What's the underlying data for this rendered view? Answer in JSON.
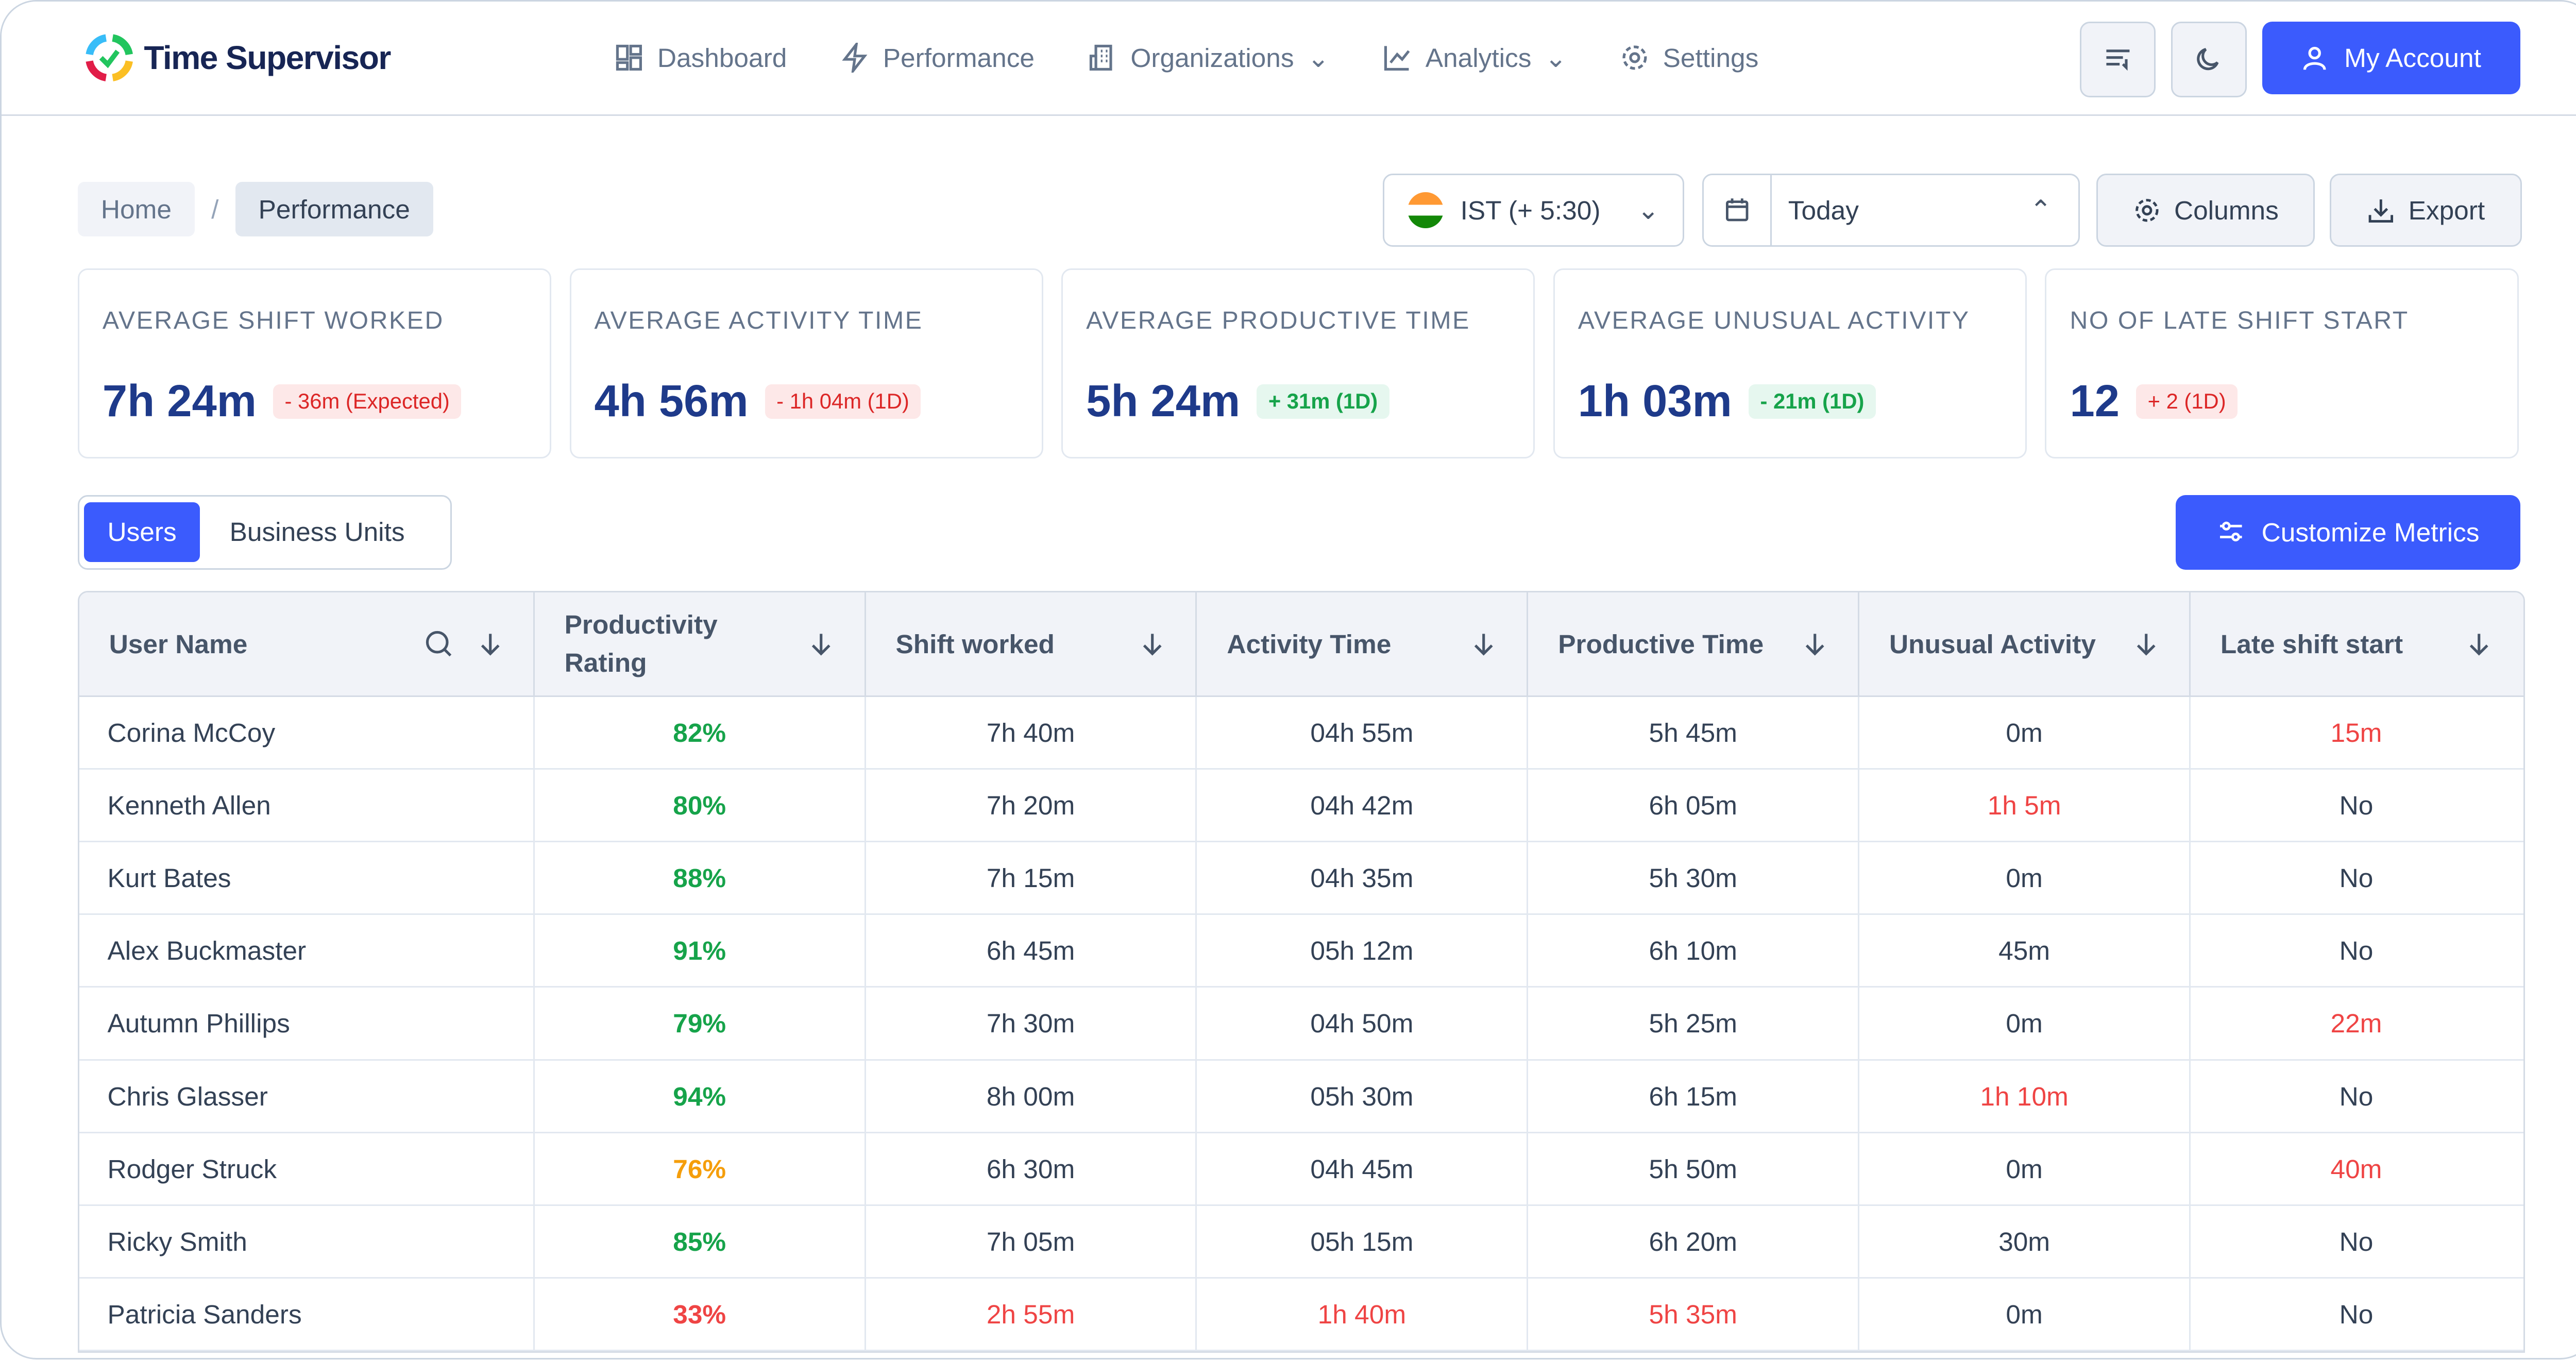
{
  "app": {
    "title": "Time Supervisor"
  },
  "nav": [
    {
      "label": "Dashboard",
      "icon": "dashboard-icon"
    },
    {
      "label": "Performance",
      "icon": "lightning-icon"
    },
    {
      "label": "Organizations",
      "icon": "building-icon"
    },
    {
      "label": "Analytics",
      "icon": "chart-icon"
    },
    {
      "label": "Settings",
      "icon": "gear-icon"
    }
  ],
  "account_label": "My Account",
  "breadcrumb": {
    "home": "Home",
    "sep": "/",
    "current": "Performance"
  },
  "timezone": "IST (+ 5:30)",
  "date_range": "Today",
  "columns_label": "Columns",
  "export_label": "Export",
  "cards": [
    {
      "title": "AVERAGE SHIFT WORKED",
      "value": "7h 24m",
      "delta": "- 36m (Expected)",
      "tone": "red"
    },
    {
      "title": "AVERAGE ACTIVITY TIME",
      "value": "4h 56m",
      "delta": "- 1h 04m (1D)",
      "tone": "red"
    },
    {
      "title": "AVERAGE PRODUCTIVE TIME",
      "value": "5h 24m",
      "delta": "+ 31m (1D)",
      "tone": "green"
    },
    {
      "title": "AVERAGE UNUSUAL ACTIVITY",
      "value": "1h 03m",
      "delta": "- 21m (1D)",
      "tone": "green"
    },
    {
      "title": "NO OF LATE SHIFT START",
      "value": "12",
      "delta": "+ 2 (1D)",
      "tone": "red"
    }
  ],
  "tabs": {
    "users": "Users",
    "business_units": "Business Units"
  },
  "customize_label": "Customize Metrics",
  "table": {
    "headers": [
      "User Name",
      "Productivity Rating",
      "Shift worked",
      "Activity Time",
      "Productive Time",
      "Unusual Activity",
      "Late shift start"
    ],
    "rows": [
      [
        "Corina McCoy",
        "82%",
        "7h 40m",
        "04h 55m",
        "5h 45m",
        "0m",
        "15m"
      ],
      [
        "Kenneth Allen",
        "80%",
        "7h 20m",
        "04h 42m",
        "6h 05m",
        "1h 5m",
        "No"
      ],
      [
        "Kurt Bates",
        "88%",
        "7h 15m",
        "04h 35m",
        "5h 30m",
        "0m",
        "No"
      ],
      [
        "Alex Buckmaster",
        "91%",
        "6h 45m",
        "05h 12m",
        "6h 10m",
        "45m",
        "No"
      ],
      [
        "Autumn Phillips",
        "79%",
        "7h 30m",
        "04h 50m",
        "5h 25m",
        "0m",
        "22m"
      ],
      [
        "Chris Glasser",
        "94%",
        "8h 00m",
        "05h 30m",
        "6h 15m",
        "1h 10m",
        "No"
      ],
      [
        "Rodger Struck",
        "76%",
        "6h 30m",
        "04h 45m",
        "5h 50m",
        "0m",
        "40m"
      ],
      [
        "Ricky Smith",
        "85%",
        "7h 05m",
        "05h 15m",
        "6h 20m",
        "30m",
        "No"
      ],
      [
        "Patricia Sanders",
        "33%",
        "2h 55m",
        "1h 40m",
        "5h 35m",
        "0m",
        "No"
      ]
    ],
    "row_tones": [
      [
        "",
        "green",
        "",
        "",
        "",
        "",
        "red"
      ],
      [
        "",
        "green",
        "",
        "",
        "",
        "red",
        ""
      ],
      [
        "",
        "green",
        "",
        "",
        "",
        "",
        ""
      ],
      [
        "",
        "green",
        "",
        "",
        "",
        "",
        ""
      ],
      [
        "",
        "green",
        "",
        "",
        "",
        "",
        "red"
      ],
      [
        "",
        "green",
        "",
        "",
        "",
        "red",
        ""
      ],
      [
        "",
        "amber",
        "",
        "",
        "",
        "",
        "red"
      ],
      [
        "",
        "green",
        "",
        "",
        "",
        "",
        ""
      ],
      [
        "",
        "redb",
        "red",
        "red",
        "red",
        "",
        ""
      ]
    ]
  },
  "colors": {
    "accent": "#3b5bfd",
    "title": "#1e3a8a",
    "positive": "#16a34a",
    "negative": "#ef4444",
    "warning": "#f59e0b"
  }
}
